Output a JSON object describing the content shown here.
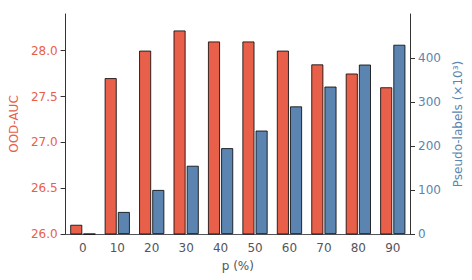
{
  "chart_data": {
    "type": "bar",
    "xlabel": "p (%)",
    "ylabel": "OOD-AUC",
    "y2label": "Pseudo-labels (×10³)",
    "categories": [
      "0",
      "10",
      "20",
      "30",
      "40",
      "50",
      "60",
      "70",
      "80",
      "90"
    ],
    "series": [
      {
        "color": "#E8604A",
        "values": [
          26.1,
          27.7,
          28.0,
          28.22,
          28.1,
          28.1,
          28.0,
          27.85,
          27.75,
          27.6
        ]
      },
      {
        "color": "#5B85B0",
        "axis": "y2",
        "values": [
          0,
          50,
          100,
          155,
          195,
          235,
          290,
          335,
          385,
          430
        ]
      }
    ],
    "ylim": [
      26.0,
      28.4
    ],
    "yticks": [
      {
        "value": 26.0,
        "label": "26.0"
      },
      26.5,
      {
        "value": 27.0,
        "label": "27.0"
      },
      27.5,
      {
        "value": 28.0,
        "label": "28.0"
      }
    ],
    "y2lim": [
      0,
      500
    ],
    "y2ticks": [
      0,
      100,
      200,
      300,
      400
    ],
    "grid": false
  }
}
